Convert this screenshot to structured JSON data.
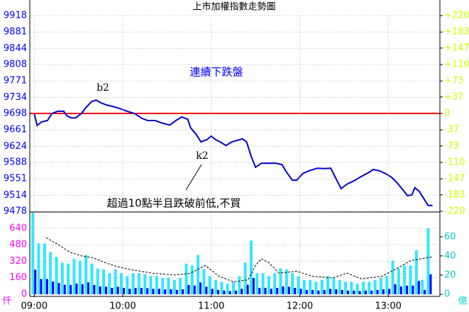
{
  "chart_data": [
    {
      "type": "line",
      "title": "上市加權指數走勢圖",
      "color": "#0000cc",
      "reference": 9698,
      "reference_color": "#ff0000",
      "ytick_color": "#0000ff",
      "y2tick_color": "#ccff00",
      "grid": true,
      "xlim": [
        "08:57",
        "13:35"
      ],
      "x": [
        "09:00",
        "09:02",
        "09:05",
        "09:09",
        "09:12",
        "09:16",
        "09:20",
        "09:22",
        "09:25",
        "09:28",
        "09:32",
        "09:35",
        "09:39",
        "09:42",
        "09:45",
        "09:49",
        "09:53",
        "09:58",
        "10:03",
        "10:08",
        "10:13",
        "10:17",
        "10:22",
        "10:27",
        "10:32",
        "10:36",
        "10:40",
        "10:44",
        "10:46",
        "10:50",
        "10:53",
        "10:57",
        "11:00",
        "11:03",
        "11:06",
        "11:10",
        "11:14",
        "11:17",
        "11:21",
        "11:24",
        "11:27",
        "11:30",
        "11:34",
        "11:39",
        "11:44",
        "11:48",
        "11:51",
        "11:55",
        "11:58",
        "12:02",
        "12:07",
        "12:12",
        "12:17",
        "12:21",
        "12:24",
        "12:28",
        "12:32",
        "12:37",
        "12:41",
        "12:46",
        "12:50",
        "12:54",
        "12:58",
        "13:02",
        "13:06",
        "13:10",
        "13:13",
        "13:16",
        "13:18",
        "13:21",
        "13:24",
        "13:27",
        "13:30"
      ],
      "values": [
        9698,
        9671,
        9679,
        9682,
        9698,
        9703,
        9703,
        9693,
        9688,
        9688,
        9698,
        9711,
        9725,
        9728,
        9722,
        9717,
        9714,
        9709,
        9703,
        9698,
        9687,
        9682,
        9682,
        9676,
        9672,
        9682,
        9690,
        9685,
        9666,
        9650,
        9634,
        9639,
        9647,
        9639,
        9634,
        9626,
        9634,
        9637,
        9641,
        9634,
        9602,
        9577,
        9586,
        9586,
        9586,
        9583,
        9566,
        9548,
        9548,
        9563,
        9570,
        9575,
        9574,
        9575,
        9555,
        9529,
        9539,
        9547,
        9555,
        9564,
        9572,
        9569,
        9563,
        9555,
        9542,
        9526,
        9513,
        9515,
        9531,
        9523,
        9507,
        9491,
        9491
      ],
      "ylim": [
        9478,
        9918
      ],
      "yticks": [
        9918,
        9881,
        9844,
        9808,
        9771,
        9734,
        9698,
        9661,
        9624,
        9588,
        9551,
        9514,
        9478
      ],
      "y2lim": [
        -220,
        220
      ],
      "y2ticks": [
        {
          "value": 220,
          "label": "+220"
        },
        {
          "value": 183,
          "label": "+183"
        },
        {
          "value": 147,
          "label": "+147"
        },
        {
          "value": 110,
          "label": "+110"
        },
        {
          "value": 73,
          "label": "+73"
        },
        {
          "value": 37,
          "label": "+37"
        },
        0,
        -37,
        -73,
        -110,
        -147,
        -183,
        -220
      ],
      "annotations": [
        "連續下跌盤",
        "b2",
        "k2",
        "超過10點半且跌破前低,不買"
      ]
    },
    {
      "type": "bar",
      "ylabel": "仟",
      "y2label": "億",
      "ytick_color": "#ff00ff",
      "y2tick_color": "#00cccc",
      "grid": true,
      "xlim": [
        "08:57",
        "13:35"
      ],
      "xticks": [
        "09:00",
        "10:00",
        "11:00",
        "12:00",
        "13:00"
      ],
      "x": [
        "09:00",
        "09:04",
        "09:08",
        "09:12",
        "09:16",
        "09:20",
        "09:24",
        "09:28",
        "09:32",
        "09:36",
        "09:40",
        "09:44",
        "09:48",
        "09:52",
        "09:56",
        "10:00",
        "10:04",
        "10:08",
        "10:12",
        "10:16",
        "10:20",
        "10:24",
        "10:28",
        "10:32",
        "10:36",
        "10:40",
        "10:44",
        "10:48",
        "10:52",
        "10:56",
        "11:00",
        "11:04",
        "11:08",
        "11:12",
        "11:16",
        "11:20",
        "11:24",
        "11:28",
        "11:32",
        "11:36",
        "11:40",
        "11:44",
        "11:48",
        "11:52",
        "11:56",
        "12:00",
        "12:04",
        "12:08",
        "12:12",
        "12:16",
        "12:20",
        "12:24",
        "12:28",
        "12:32",
        "12:36",
        "12:40",
        "12:44",
        "12:48",
        "12:52",
        "12:56",
        "13:00",
        "13:04",
        "13:08",
        "13:12",
        "13:16",
        "13:20",
        "13:24",
        "13:28"
      ],
      "ylim": [
        0,
        790
      ],
      "yticks": [
        0,
        160,
        320,
        480,
        640
      ],
      "y2lim": [
        0,
        85
      ],
      "y2ticks": [
        0,
        20,
        40,
        60
      ],
      "series": [
        {
          "color": "#33e6ff",
          "axis": "y2",
          "values": [
            85,
            53,
            53,
            44,
            39,
            33,
            32,
            37,
            35,
            41,
            32,
            27,
            26,
            22,
            26,
            22,
            19,
            22,
            22,
            21,
            19,
            19,
            17,
            17,
            15,
            17,
            32,
            30,
            41,
            26,
            19,
            15,
            13,
            11,
            13,
            19,
            33,
            56,
            22,
            22,
            19,
            22,
            27,
            26,
            22,
            19,
            15,
            15,
            13,
            15,
            19,
            17,
            15,
            13,
            13,
            11,
            13,
            13,
            15,
            17,
            19,
            35,
            27,
            30,
            30,
            46,
            15,
            69
          ]
        },
        {
          "color": "#0000ff",
          "values": [
            238,
            148,
            148,
            123,
            109,
            92,
            90,
            104,
            98,
            115,
            90,
            76,
            73,
            62,
            73,
            62,
            53,
            62,
            62,
            59,
            53,
            53,
            48,
            48,
            42,
            48,
            90,
            84,
            115,
            73,
            53,
            42,
            36,
            31,
            36,
            53,
            92,
            157,
            62,
            62,
            53,
            62,
            76,
            73,
            62,
            53,
            42,
            42,
            36,
            42,
            53,
            48,
            42,
            36,
            36,
            31,
            36,
            36,
            42,
            48,
            53,
            98,
            76,
            84,
            84,
            129,
            42,
            193
          ]
        },
        {
          "type": "line",
          "color": "#000000",
          "axis": "y2",
          "dashed": true,
          "x": [
            "09:08",
            "09:16",
            "09:24",
            "09:32",
            "09:40",
            "09:48",
            "09:56",
            "10:04",
            "10:12",
            "10:20",
            "10:28",
            "10:36",
            "10:46",
            "10:56",
            "11:05",
            "11:15",
            "11:25",
            "11:30",
            "11:34",
            "11:39",
            "11:46",
            "11:58",
            "12:08",
            "12:22",
            "12:32",
            "12:42",
            "12:56",
            "13:06",
            "13:15",
            "13:30"
          ],
          "values": [
            59,
            52,
            44,
            40,
            38,
            33,
            29,
            26,
            24,
            22,
            21,
            20,
            22,
            30,
            19,
            13,
            15,
            30,
            37,
            33,
            22,
            24,
            19,
            17,
            22,
            16,
            19,
            27,
            35,
            39
          ]
        }
      ]
    }
  ]
}
